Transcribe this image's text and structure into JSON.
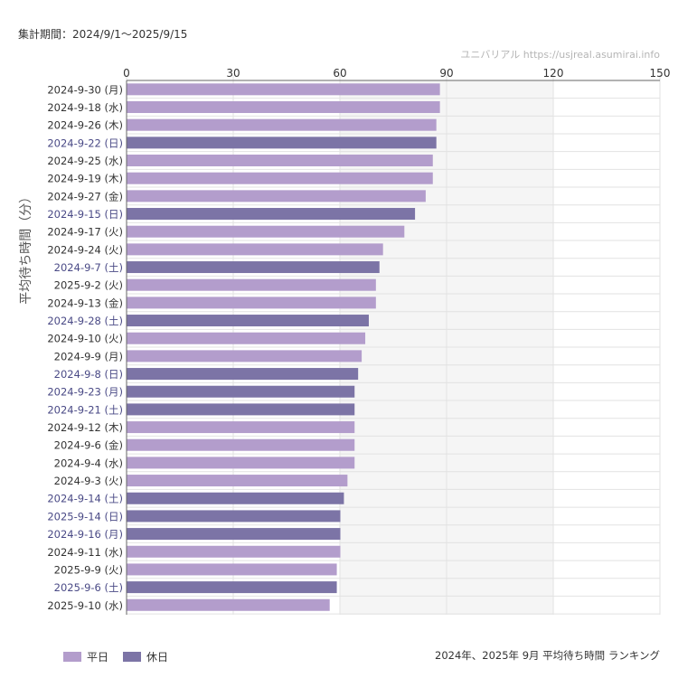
{
  "header": {
    "period": "集計期間：2024/9/1〜2025/9/15",
    "source": "ユニバリアル  https://usjreal.asumirai.info"
  },
  "footer": {
    "title": "2024年、2025年 9月 平均待ち時間 ランキング"
  },
  "colors": {
    "weekday": "#b39dcc",
    "holiday": "#7c74a6",
    "weekday_label": "#333333",
    "holiday_label": "#4a4a86",
    "shade": "#f5f5f5",
    "grid": "#e2e2e2"
  },
  "chart_data": {
    "type": "bar",
    "orientation": "horizontal",
    "title": "2024年、2025年 9月 平均待ち時間 ランキング",
    "ylabel": "平均待ち時間（分）",
    "xlim": [
      0,
      150
    ],
    "xticks": [
      0,
      30,
      60,
      90,
      120,
      150
    ],
    "shaded_ranges": [
      [
        60,
        90
      ],
      [
        90,
        120
      ]
    ],
    "grid": true,
    "legend": {
      "position": "bottom-left",
      "entries": [
        {
          "name": "平日",
          "key": "weekday"
        },
        {
          "name": "休日",
          "key": "holiday"
        }
      ]
    },
    "categories": [
      "2024-9-30 (月)",
      "2024-9-18 (水)",
      "2024-9-26 (木)",
      "2024-9-22 (日)",
      "2024-9-25 (水)",
      "2024-9-19 (木)",
      "2024-9-27 (金)",
      "2024-9-15 (日)",
      "2024-9-17 (火)",
      "2024-9-24 (火)",
      "2024-9-7 (土)",
      "2025-9-2 (火)",
      "2024-9-13 (金)",
      "2024-9-28 (土)",
      "2024-9-10 (火)",
      "2024-9-9 (月)",
      "2024-9-8 (日)",
      "2024-9-23 (月)",
      "2024-9-21 (土)",
      "2024-9-12 (木)",
      "2024-9-6 (金)",
      "2024-9-4 (水)",
      "2024-9-3 (火)",
      "2024-9-14 (土)",
      "2025-9-14 (日)",
      "2024-9-16 (月)",
      "2024-9-11 (水)",
      "2025-9-9 (火)",
      "2025-9-6 (土)",
      "2025-9-10 (水)"
    ],
    "values": [
      88,
      88,
      87,
      87,
      86,
      86,
      84,
      81,
      78,
      72,
      71,
      70,
      70,
      68,
      67,
      66,
      65,
      64,
      64,
      64,
      64,
      64,
      62,
      61,
      60,
      60,
      60,
      59,
      59,
      57
    ],
    "day_type": [
      "weekday",
      "weekday",
      "weekday",
      "holiday",
      "weekday",
      "weekday",
      "weekday",
      "holiday",
      "weekday",
      "weekday",
      "holiday",
      "weekday",
      "weekday",
      "holiday",
      "weekday",
      "weekday",
      "holiday",
      "holiday",
      "holiday",
      "weekday",
      "weekday",
      "weekday",
      "weekday",
      "holiday",
      "holiday",
      "holiday",
      "weekday",
      "weekday",
      "holiday",
      "weekday"
    ]
  }
}
